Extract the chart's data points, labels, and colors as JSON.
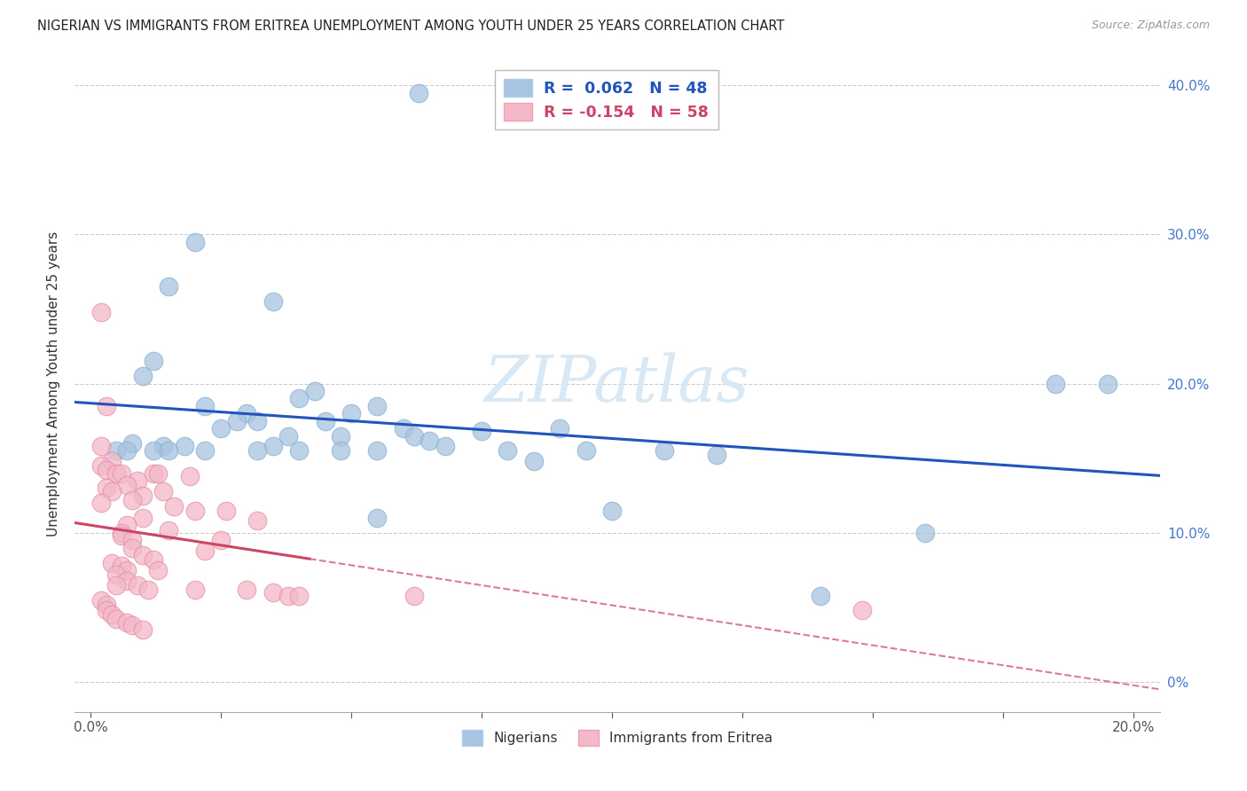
{
  "title": "NIGERIAN VS IMMIGRANTS FROM ERITREA UNEMPLOYMENT AMONG YOUTH UNDER 25 YEARS CORRELATION CHART",
  "source": "Source: ZipAtlas.com",
  "ylabel": "Unemployment Among Youth under 25 years",
  "r_nigerian": 0.062,
  "n_nigerian": 48,
  "r_eritrea": -0.154,
  "n_eritrea": 58,
  "blue_color": "#a8c4e0",
  "pink_color": "#f4b8c8",
  "blue_line_color": "#2255bb",
  "pink_line_color": "#cc4466",
  "grid_color": "#cccccc",
  "watermark_color": "#d8e8f4",
  "xlim": [
    0.0,
    0.205
  ],
  "ylim": [
    -0.02,
    0.42
  ],
  "ytick_positions": [
    0.0,
    0.1,
    0.2,
    0.3,
    0.4
  ],
  "ytick_labels_right": [
    "0%",
    "10.0%",
    "20.0%",
    "30.0%",
    "40.0%"
  ],
  "xtick_positions": [
    0.0,
    0.025,
    0.05,
    0.075,
    0.1,
    0.125,
    0.15,
    0.175,
    0.2
  ],
  "xtick_labels": [
    "0.0%",
    "",
    "",
    "",
    "",
    "",
    "",
    "",
    "20.0%"
  ],
  "nigerian_points": [
    [
      0.063,
      0.395
    ],
    [
      0.02,
      0.295
    ],
    [
      0.015,
      0.265
    ],
    [
      0.035,
      0.255
    ],
    [
      0.012,
      0.215
    ],
    [
      0.01,
      0.205
    ],
    [
      0.043,
      0.195
    ],
    [
      0.04,
      0.19
    ],
    [
      0.022,
      0.185
    ],
    [
      0.055,
      0.185
    ],
    [
      0.03,
      0.18
    ],
    [
      0.05,
      0.18
    ],
    [
      0.032,
      0.175
    ],
    [
      0.028,
      0.175
    ],
    [
      0.045,
      0.175
    ],
    [
      0.09,
      0.17
    ],
    [
      0.025,
      0.17
    ],
    [
      0.06,
      0.17
    ],
    [
      0.075,
      0.168
    ],
    [
      0.038,
      0.165
    ],
    [
      0.048,
      0.165
    ],
    [
      0.062,
      0.165
    ],
    [
      0.065,
      0.162
    ],
    [
      0.008,
      0.16
    ],
    [
      0.018,
      0.158
    ],
    [
      0.014,
      0.158
    ],
    [
      0.035,
      0.158
    ],
    [
      0.068,
      0.158
    ],
    [
      0.005,
      0.155
    ],
    [
      0.007,
      0.155
    ],
    [
      0.012,
      0.155
    ],
    [
      0.015,
      0.155
    ],
    [
      0.022,
      0.155
    ],
    [
      0.032,
      0.155
    ],
    [
      0.04,
      0.155
    ],
    [
      0.048,
      0.155
    ],
    [
      0.055,
      0.155
    ],
    [
      0.08,
      0.155
    ],
    [
      0.095,
      0.155
    ],
    [
      0.11,
      0.155
    ],
    [
      0.12,
      0.152
    ],
    [
      0.085,
      0.148
    ],
    [
      0.1,
      0.115
    ],
    [
      0.055,
      0.11
    ],
    [
      0.16,
      0.1
    ],
    [
      0.14,
      0.058
    ],
    [
      0.185,
      0.2
    ],
    [
      0.195,
      0.2
    ]
  ],
  "eritrea_points": [
    [
      0.002,
      0.248
    ],
    [
      0.003,
      0.185
    ],
    [
      0.002,
      0.158
    ],
    [
      0.004,
      0.148
    ],
    [
      0.002,
      0.145
    ],
    [
      0.003,
      0.142
    ],
    [
      0.005,
      0.14
    ],
    [
      0.006,
      0.14
    ],
    [
      0.012,
      0.14
    ],
    [
      0.013,
      0.14
    ],
    [
      0.019,
      0.138
    ],
    [
      0.009,
      0.135
    ],
    [
      0.007,
      0.132
    ],
    [
      0.003,
      0.13
    ],
    [
      0.004,
      0.128
    ],
    [
      0.014,
      0.128
    ],
    [
      0.01,
      0.125
    ],
    [
      0.008,
      0.122
    ],
    [
      0.002,
      0.12
    ],
    [
      0.016,
      0.118
    ],
    [
      0.02,
      0.115
    ],
    [
      0.026,
      0.115
    ],
    [
      0.01,
      0.11
    ],
    [
      0.032,
      0.108
    ],
    [
      0.007,
      0.105
    ],
    [
      0.015,
      0.102
    ],
    [
      0.006,
      0.1
    ],
    [
      0.006,
      0.098
    ],
    [
      0.008,
      0.095
    ],
    [
      0.025,
      0.095
    ],
    [
      0.008,
      0.09
    ],
    [
      0.022,
      0.088
    ],
    [
      0.01,
      0.085
    ],
    [
      0.012,
      0.082
    ],
    [
      0.004,
      0.08
    ],
    [
      0.006,
      0.078
    ],
    [
      0.007,
      0.075
    ],
    [
      0.013,
      0.075
    ],
    [
      0.005,
      0.072
    ],
    [
      0.007,
      0.068
    ],
    [
      0.005,
      0.065
    ],
    [
      0.009,
      0.065
    ],
    [
      0.011,
      0.062
    ],
    [
      0.02,
      0.062
    ],
    [
      0.03,
      0.062
    ],
    [
      0.035,
      0.06
    ],
    [
      0.038,
      0.058
    ],
    [
      0.04,
      0.058
    ],
    [
      0.002,
      0.055
    ],
    [
      0.003,
      0.052
    ],
    [
      0.003,
      0.048
    ],
    [
      0.004,
      0.045
    ],
    [
      0.005,
      0.042
    ],
    [
      0.007,
      0.04
    ],
    [
      0.008,
      0.038
    ],
    [
      0.01,
      0.035
    ],
    [
      0.148,
      0.048
    ],
    [
      0.062,
      0.058
    ]
  ]
}
